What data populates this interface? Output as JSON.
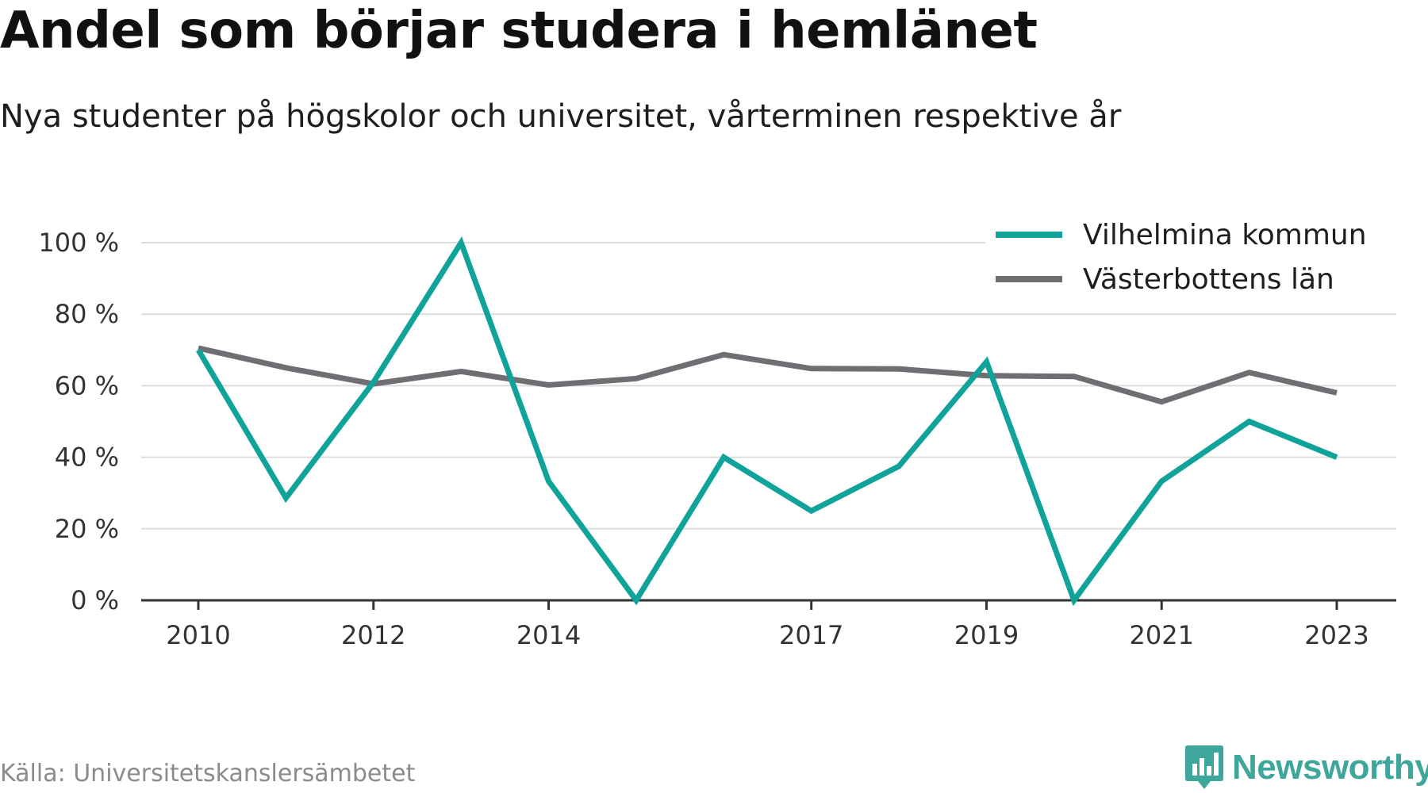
{
  "title": "Andel som börjar studera i hemlänet",
  "subtitle": "Nya studenter på högskolor och universitet, vårterminen respektive år",
  "source": "Källa: Universitetskanslersämbetet",
  "brand": {
    "name": "Newsworthy",
    "color": "#3fa69c",
    "icon": "bar-chart-badge-icon"
  },
  "chart_data": {
    "type": "line",
    "x": [
      2010,
      2011,
      2012,
      2013,
      2014,
      2015,
      2016,
      2017,
      2018,
      2019,
      2020,
      2021,
      2022,
      2023
    ],
    "x_tick_labels": [
      "2010",
      "2012",
      "2014",
      "2017",
      "2019",
      "2021",
      "2023"
    ],
    "y_ticks": [
      0,
      20,
      40,
      60,
      80,
      100
    ],
    "y_tick_labels": [
      "0 %",
      "20 %",
      "40 %",
      "60 %",
      "80 %",
      "100 %"
    ],
    "ylim": [
      0,
      100
    ],
    "grid": true,
    "legend_position": "top-right",
    "series": [
      {
        "name": "Vilhelmina kommun",
        "color": "#0fa39a",
        "values": [
          70,
          28.6,
          61,
          100,
          33.3,
          0,
          40,
          25,
          37.5,
          66.7,
          0,
          33.3,
          50,
          40
        ]
      },
      {
        "name": "Västerbottens län",
        "color": "#6f6e73",
        "values": [
          70.5,
          65,
          60.5,
          64,
          60.2,
          62,
          68.7,
          64.8,
          64.7,
          62.8,
          62.6,
          55.5,
          63.7,
          58
        ]
      }
    ]
  }
}
